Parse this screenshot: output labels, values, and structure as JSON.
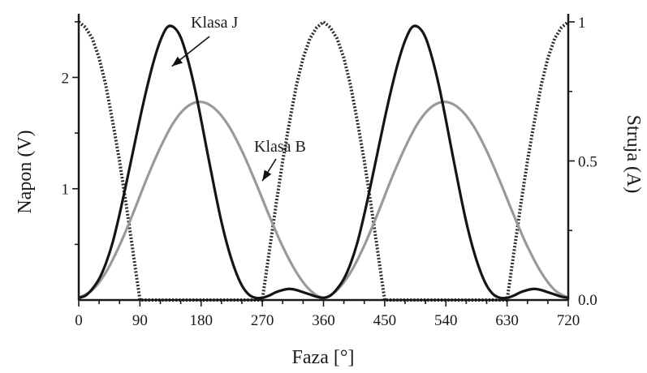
{
  "chart_data": {
    "type": "line",
    "x": {
      "label": "Faza [°]",
      "range": [
        0,
        720
      ],
      "ticks": [
        0,
        90,
        180,
        270,
        360,
        450,
        540,
        630,
        720
      ]
    },
    "y_left": {
      "label": "Napon (V)",
      "range": [
        0,
        2.55
      ],
      "ticks": [
        1,
        2
      ]
    },
    "y_right": {
      "label": "Struja (A)",
      "range": [
        0,
        1
      ],
      "ticks": [
        0.5,
        1
      ],
      "tick_labels": [
        "0.5",
        "1"
      ],
      "zero_label": "0.0"
    },
    "series": [
      {
        "name": "Klasa J",
        "axis": "left",
        "style": "solid-black",
        "x": [
          0,
          10,
          20,
          30,
          40,
          50,
          60,
          70,
          80,
          90,
          100,
          110,
          120,
          130,
          140,
          150,
          160,
          170,
          180,
          190,
          200,
          210,
          220,
          230,
          240,
          250,
          260,
          270,
          280,
          290,
          300,
          310,
          320,
          330,
          340,
          350,
          360,
          370,
          380,
          390,
          400,
          410,
          420,
          430,
          440,
          450,
          460,
          470,
          480,
          490,
          500,
          510,
          520,
          530,
          540,
          550,
          560,
          570,
          580,
          590,
          600,
          610,
          620,
          630,
          640,
          650,
          660,
          670,
          680,
          690,
          700,
          710,
          720
        ],
        "y": [
          0.02,
          0.04,
          0.1,
          0.19,
          0.33,
          0.52,
          0.77,
          1.05,
          1.34,
          1.63,
          1.9,
          2.14,
          2.33,
          2.45,
          2.45,
          2.36,
          2.17,
          1.92,
          1.62,
          1.3,
          0.99,
          0.7,
          0.46,
          0.27,
          0.13,
          0.05,
          0.02,
          0.02,
          0.04,
          0.07,
          0.09,
          0.1,
          0.09,
          0.07,
          0.05,
          0.03,
          0.02,
          0.04,
          0.1,
          0.19,
          0.33,
          0.52,
          0.77,
          1.05,
          1.34,
          1.63,
          1.9,
          2.14,
          2.33,
          2.45,
          2.45,
          2.36,
          2.17,
          1.92,
          1.62,
          1.3,
          0.99,
          0.7,
          0.46,
          0.27,
          0.13,
          0.05,
          0.02,
          0.02,
          0.04,
          0.07,
          0.09,
          0.1,
          0.09,
          0.07,
          0.05,
          0.03,
          0.02
        ]
      },
      {
        "name": "Klasa B",
        "axis": "left",
        "style": "solid-gray",
        "x": [
          0,
          20,
          40,
          60,
          80,
          100,
          120,
          140,
          160,
          180,
          200,
          220,
          240,
          260,
          280,
          300,
          320,
          340,
          360,
          380,
          400,
          420,
          440,
          460,
          480,
          500,
          520,
          540,
          560,
          580,
          600,
          620,
          640,
          660,
          680,
          700,
          720
        ],
        "y": [
          0.02,
          0.09,
          0.25,
          0.49,
          0.78,
          1.09,
          1.37,
          1.6,
          1.74,
          1.78,
          1.72,
          1.57,
          1.34,
          1.06,
          0.76,
          0.48,
          0.25,
          0.09,
          0.02,
          0.09,
          0.25,
          0.49,
          0.78,
          1.09,
          1.37,
          1.6,
          1.74,
          1.78,
          1.72,
          1.57,
          1.34,
          1.06,
          0.76,
          0.48,
          0.25,
          0.09,
          0.02
        ]
      },
      {
        "name": "Struja",
        "axis": "right",
        "style": "dotted",
        "x": [
          0,
          10,
          20,
          30,
          40,
          50,
          60,
          70,
          80,
          90,
          100,
          110,
          120,
          130,
          140,
          150,
          160,
          170,
          180,
          190,
          200,
          210,
          220,
          230,
          240,
          250,
          260,
          270,
          280,
          290,
          300,
          310,
          320,
          330,
          340,
          350,
          360,
          370,
          380,
          390,
          400,
          410,
          420,
          430,
          440,
          450,
          460,
          470,
          480,
          490,
          500,
          510,
          520,
          530,
          540,
          550,
          560,
          570,
          580,
          590,
          600,
          610,
          620,
          630,
          640,
          650,
          660,
          670,
          680,
          690,
          700,
          710,
          720
        ],
        "y": [
          1,
          0.98,
          0.94,
          0.87,
          0.77,
          0.64,
          0.5,
          0.34,
          0.17,
          0,
          0,
          0,
          0,
          0,
          0,
          0,
          0,
          0,
          0,
          0,
          0,
          0,
          0,
          0,
          0,
          0,
          0,
          0,
          0.17,
          0.34,
          0.5,
          0.64,
          0.77,
          0.87,
          0.94,
          0.98,
          1,
          0.98,
          0.94,
          0.87,
          0.77,
          0.64,
          0.5,
          0.34,
          0.17,
          0,
          0,
          0,
          0,
          0,
          0,
          0,
          0,
          0,
          0,
          0,
          0,
          0,
          0,
          0,
          0,
          0,
          0,
          0,
          0.17,
          0.34,
          0.5,
          0.64,
          0.77,
          0.87,
          0.94,
          0.98,
          1
        ]
      }
    ],
    "annotations": [
      {
        "text": "Klasa J",
        "target_series": "Klasa J",
        "target_x": 137,
        "target_y": 2.1
      },
      {
        "text": "Klasa B",
        "target_series": "Klasa B",
        "target_x": 270,
        "target_y": 1.07
      }
    ],
    "grid": false,
    "legend": "none"
  },
  "colors": {
    "axis": "#1a1a1a",
    "klasa_j": "#151515",
    "klasa_b": "#9a9a9a",
    "struja": "#2a2a2a",
    "background": "#ffffff"
  }
}
